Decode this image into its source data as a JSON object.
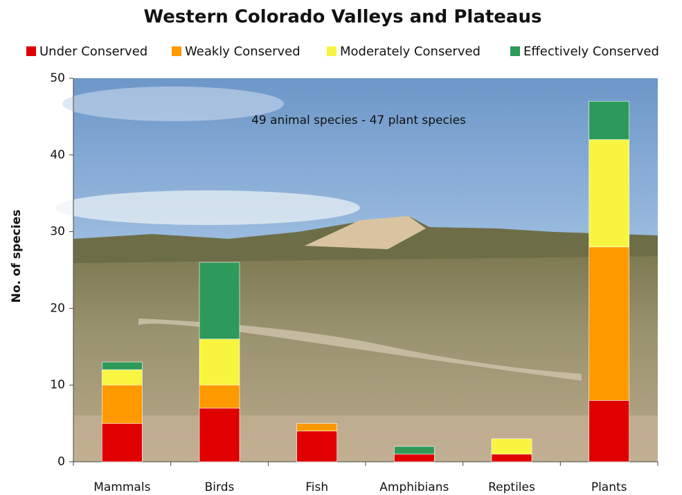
{
  "chart_data": {
    "type": "stacked_bar",
    "title": "Western Colorado Valleys and Plateaus",
    "annotation": "49 animal species - 47 plant species",
    "y_label": "No. of species",
    "categories": [
      "Mammals",
      "Birds",
      "Fish",
      "Amphibians",
      "Reptiles",
      "Plants"
    ],
    "series": [
      {
        "name": "Under Conserved",
        "color": "#e00000",
        "values": [
          5,
          7,
          4,
          1,
          1,
          8
        ]
      },
      {
        "name": "Weakly Conserved",
        "color": "#ff9900",
        "values": [
          5,
          3,
          1,
          0,
          0,
          20
        ]
      },
      {
        "name": "Moderately Conserved",
        "color": "#f8f540",
        "values": [
          2,
          6,
          0,
          0,
          2,
          14
        ]
      },
      {
        "name": "Effectively Conserved",
        "color": "#2e9a5a",
        "values": [
          1,
          10,
          0,
          1,
          0,
          5
        ]
      }
    ],
    "ylim": [
      0,
      50
    ],
    "yticks": [
      0,
      10,
      20,
      30,
      40,
      50
    ],
    "legend": "top"
  }
}
